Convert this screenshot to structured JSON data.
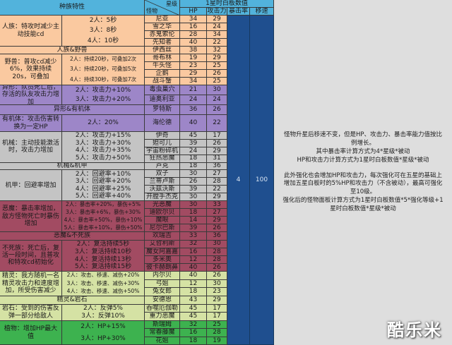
{
  "header": {
    "trait_title": "种族特性",
    "star_label": "星级",
    "monster_label": "怪物",
    "stats_title": "1星时白板数值",
    "col_hp": "HP",
    "col_atk": "攻击力",
    "col_crit": "暴击率",
    "col_speed": "移速"
  },
  "crit_value": "4",
  "speed_value": "100",
  "colors": {
    "header": "#52b3dc",
    "stat_columns": "#1f4f8f",
    "human_beast": "#fac9a0",
    "alien_organic": "#9d86c8",
    "mech": "#c4c4c4",
    "demon_undead": "#a24b62",
    "elf_rock": "#d5e2a4",
    "plant": "#3db24f"
  },
  "groups": [
    {
      "color": "#fac9a0",
      "segments": [
        {
          "type": "trait",
          "trait": "人族：特攻时减少主动技能cd",
          "bonus": [
            "2人：5秒",
            "3人：8秒",
            "4人：10秒"
          ],
          "monsters": [
            [
              "尼亚",
              "34",
              "29"
            ],
            [
              "雪之华",
              "16",
              "24"
            ],
            [
              "赤鬼索伦",
              "28",
              "34"
            ],
            [
              "先知者",
              "40",
              "22"
            ]
          ]
        },
        {
          "type": "combo",
          "label": "人族&野兽",
          "monsters": [
            [
              "伊西丝",
              "38",
              "32"
            ]
          ]
        },
        {
          "type": "trait",
          "trait": "野兽：普攻cd减少6%，效果持续20s，可叠加",
          "bonus": [
            "2人：持续20秒，可叠加2次",
            "3人：持续20秒，可叠加5次",
            "4人：持续30秒，可叠加7次"
          ],
          "monsters": [
            [
              "哥布林",
              "19",
              "29"
            ],
            [
              "牛头怪",
              "23",
              "25"
            ],
            [
              "企鹅",
              "29",
              "26"
            ],
            [
              "战斗蟹",
              "34",
              "25"
            ]
          ]
        }
      ]
    },
    {
      "color": "#9d86c8",
      "segments": [
        {
          "type": "trait",
          "trait": "异形：队员死亡后，存活的队友攻击力增加",
          "bonus": [
            "2人：攻击力+10%",
            "3人：攻击力+20%"
          ],
          "monsters": [
            [
              "毒虫巢穴",
              "21",
              "30"
            ],
            [
              "迪奥利亚",
              "24",
              "24"
            ]
          ]
        },
        {
          "type": "combo",
          "label": "异形&有机体",
          "monsters": [
            [
              "罗特斯",
              "36",
              "26"
            ]
          ]
        },
        {
          "type": "trait",
          "trait": "有机体：攻击伤害转换为一定HP",
          "bonus": [
            "2人：20%"
          ],
          "monsters": [
            [
              "海伦德",
              "40",
              "22"
            ]
          ]
        }
      ]
    },
    {
      "color": "#c4c4c4",
      "segments": [
        {
          "type": "trait",
          "trait": "机械：主动技能激活时，攻击力增加",
          "bonus": [
            "2人：攻击力+15%",
            "3人：攻击力+30%",
            "4人：攻击力+35%",
            "5人：攻击力+50%"
          ],
          "monsters": [
            [
              "伊奇",
              "45",
              "17"
            ],
            [
              "妲可儿",
              "39",
              "26"
            ],
            [
              "宇宙粉碎机",
              "24",
              "29"
            ],
            [
              "狂热恶魔",
              "18",
              "31"
            ]
          ]
        },
        {
          "type": "combo",
          "label": "机械&机甲",
          "monsters": [
            [
              "卢克",
              "18",
              "36"
            ]
          ]
        },
        {
          "type": "trait",
          "trait": "机甲：回避率增加",
          "bonus": [
            "2人：回避率+10%",
            "3人：回避率+20%",
            "4人：回避率+25%",
            "5人：回避率+40%"
          ],
          "monsters": [
            [
              "双子",
              "30",
              "27"
            ],
            [
              "兰蒂卢斯",
              "26",
              "28"
            ],
            [
              "沃兹沃斯",
              "39",
              "22"
            ],
            [
              "开膛手杰克",
              "30",
              "29"
            ]
          ]
        }
      ]
    },
    {
      "color": "#a24b62",
      "segments": [
        {
          "type": "trait",
          "trait": "恶魔：暴击率增加，敌方怪物死亡时暴伤增加",
          "bonus": [
            "2人：暴击率+20%，暴伤+5%",
            "3人：暴击率+6%，暴伤+30%",
            "4人：暴击率+50%，暴伤+10%",
            "5人：暴击率+10%，暴伤+50%"
          ],
          "monsters": [
            [
              "光恶魔",
              "30",
              "33"
            ],
            [
              "迪欧尔贝",
              "18",
              "27"
            ],
            [
              "魔眼",
              "14",
              "29"
            ],
            [
              "尼尔巴斯",
              "39",
              "26"
            ]
          ]
        },
        {
          "type": "combo",
          "label": "恶魔&不死族",
          "monsters": [
            [
              "欢瑞吉",
              "33",
              "36"
            ]
          ]
        },
        {
          "type": "trait",
          "trait": "不死族：死亡后，复活一段时间，且普攻和特攻cd初始化",
          "bonus": [
            "2人：复活持续5秒",
            "3人：复活持续10秒",
            "4人：复活持续13秒",
            "5人：复活持续15秒"
          ],
          "monsters": [
            [
              "艾哲利斯",
              "32",
              "30"
            ],
            [
              "魔女阿嘉嘉",
              "16",
              "28"
            ],
            [
              "多米奥",
              "12",
              "28"
            ],
            [
              "彼卡赫朗鼻",
              "40",
              "26"
            ]
          ]
        }
      ]
    },
    {
      "color": "#d5e2a4",
      "segments": [
        {
          "type": "trait",
          "trait": "精灵：我方随机一名精灵攻击力和速度增加，所受伤害减少",
          "bonus": [
            "2人：攻击、移速、减伤+20%",
            "3人：攻击、移速、减伤+30%",
            "4人：攻击、移速、减伤+50%"
          ],
          "monsters": [
            [
              "内尔贝",
              "40",
              "26"
            ],
            [
              "弓姐",
              "12",
              "30"
            ],
            [
              "兔女郎",
              "18",
              "23"
            ]
          ]
        },
        {
          "type": "combo",
          "label": "精灵&岩石",
          "monsters": [
            [
              "安德恩",
              "43",
              "29"
            ]
          ]
        },
        {
          "type": "trait",
          "trait": "岩石：受到的伤害反弹一部分给敌人",
          "bonus": [
            "2人：反弹5%",
            "3人：反弹10%"
          ],
          "monsters": [
            [
              "吞噬厄伽勒",
              "45",
              "17"
            ],
            [
              "重力恶魔",
              "45",
              "17"
            ]
          ]
        }
      ]
    },
    {
      "color": "#3db24f",
      "segments": [
        {
          "type": "trait",
          "trait": "植物：增加HP最大值",
          "bonus": [
            "2人：HP+15%",
            "3人：HP+30%"
          ],
          "monsters": [
            [
              "斯瑞姆",
              "32",
              "25"
            ],
            [
              "常春藤魔",
              "16",
              "28"
            ],
            [
              "花姐",
              "18",
              "19"
            ]
          ]
        }
      ]
    }
  ],
  "notes": [
    "怪物升星后移速不变，但是HP、攻击力、暴击率能力值按比例增长。",
    "其中暴击率计算方式为4*星级*被动",
    "HP和攻击力计算方式为1星时白板数值*星级*被动",
    "",
    "此外强化也会增加HP和攻击力，每次强化可在五星的基础上增加五星白板时的5%HP和攻击力（不含被动），最高可强化至10级。",
    "强化后的怪物面板计算方式为1星时白板数值*5*强化等级+1星时白板数值*星级*被动"
  ],
  "watermark": "酷乐米"
}
